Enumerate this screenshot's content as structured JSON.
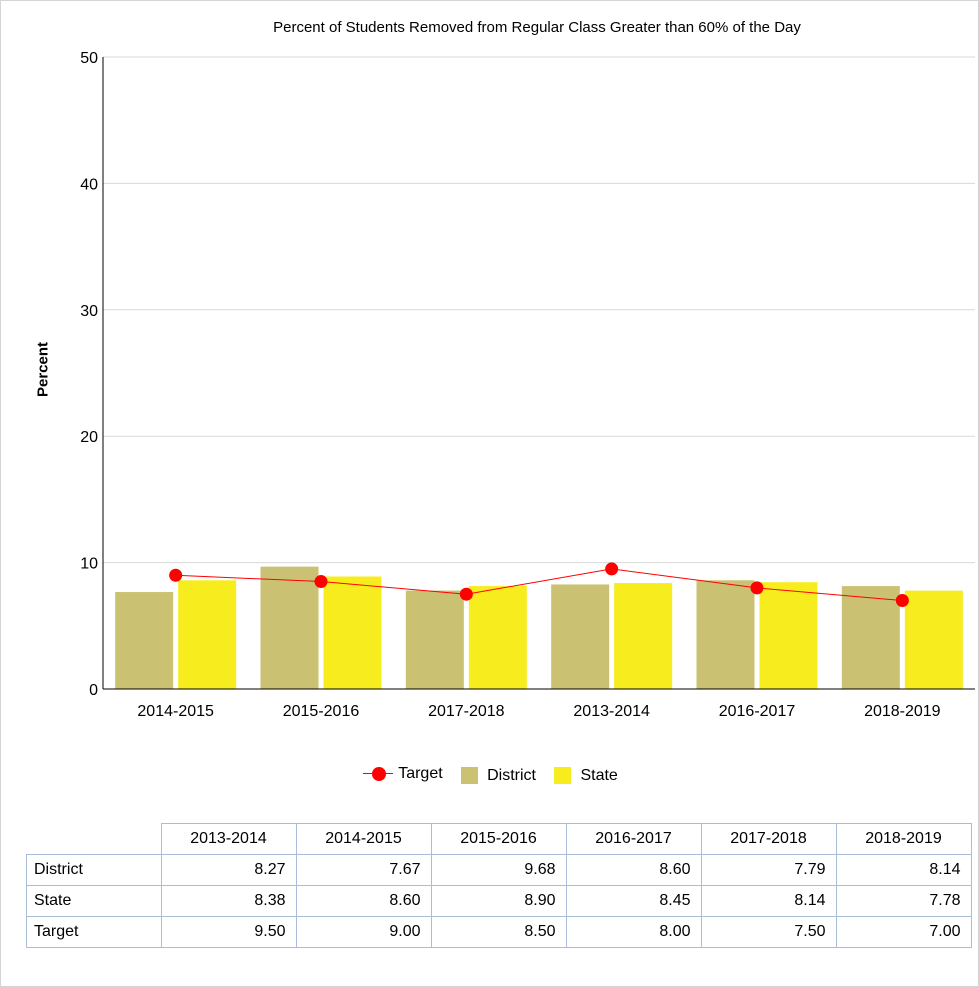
{
  "chart_data": {
    "type": "bar",
    "title": "Percent of Students Removed from Regular Class Greater than 60% of the Day",
    "xlabel": "",
    "ylabel": "Percent",
    "ylim": [
      0,
      50
    ],
    "yticks": [
      0,
      10,
      20,
      30,
      40,
      50
    ],
    "grid": true,
    "legend_position": "bottom",
    "categories": [
      "2014-2015",
      "2015-2016",
      "2017-2018",
      "2013-2014",
      "2016-2017",
      "2018-2019"
    ],
    "series": [
      {
        "name": "District",
        "type": "bar",
        "color": "#cbc172",
        "values": [
          7.67,
          9.68,
          7.79,
          8.27,
          8.6,
          8.14
        ]
      },
      {
        "name": "State",
        "type": "bar",
        "color": "#f7ec1e",
        "values": [
          8.6,
          8.9,
          8.14,
          8.38,
          8.45,
          7.78
        ]
      },
      {
        "name": "Target",
        "type": "line",
        "color": "#ff0000",
        "values": [
          9.0,
          8.5,
          7.5,
          9.5,
          8.0,
          7.0
        ]
      }
    ]
  },
  "legend": {
    "target": "Target",
    "district": "District",
    "state": "State"
  },
  "table": {
    "headers": [
      "2013-2014",
      "2014-2015",
      "2015-2016",
      "2016-2017",
      "2017-2018",
      "2018-2019"
    ],
    "rows": [
      {
        "label": "District",
        "values": [
          "8.27",
          "7.67",
          "9.68",
          "8.60",
          "7.79",
          "8.14"
        ]
      },
      {
        "label": "State",
        "values": [
          "8.38",
          "8.60",
          "8.90",
          "8.45",
          "8.14",
          "7.78"
        ]
      },
      {
        "label": "Target",
        "values": [
          "9.50",
          "9.00",
          "8.50",
          "8.00",
          "7.50",
          "7.00"
        ]
      }
    ]
  }
}
